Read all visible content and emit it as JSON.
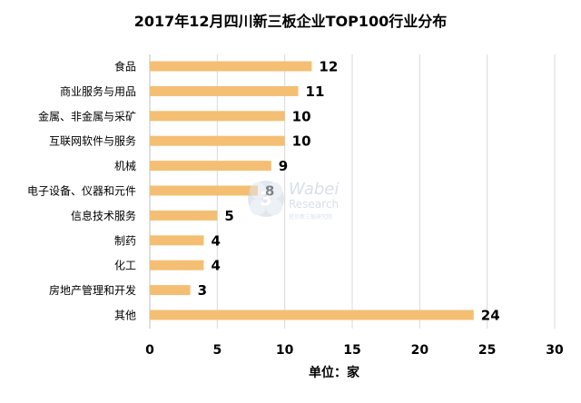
{
  "chart_data": {
    "type": "bar",
    "orientation": "horizontal",
    "title": "2017年12月四川新三板企业TOP100行业分布",
    "xlabel": "单位：家",
    "ylabel": "",
    "xlim": [
      0,
      30
    ],
    "xticks": [
      "0",
      "5",
      "10",
      "15",
      "20",
      "25",
      "30"
    ],
    "grid": true,
    "legend": "none",
    "bar_color": "#F4BF73",
    "categories": [
      "食品",
      "商业服务与用品",
      "金属、非金属与采矿",
      "互联网软件与服务",
      "机械",
      "电子设备、仪器和元件",
      "信息技术服务",
      "制药",
      "化工",
      "房地产管理和开发",
      "其他"
    ],
    "values": [
      12,
      11,
      10,
      10,
      9,
      8,
      5,
      4,
      4,
      3,
      24
    ]
  },
  "watermark": {
    "logo_text": "3",
    "line1": "Wabei",
    "line2": "Research",
    "line3": "挖贝新三板研究院"
  }
}
